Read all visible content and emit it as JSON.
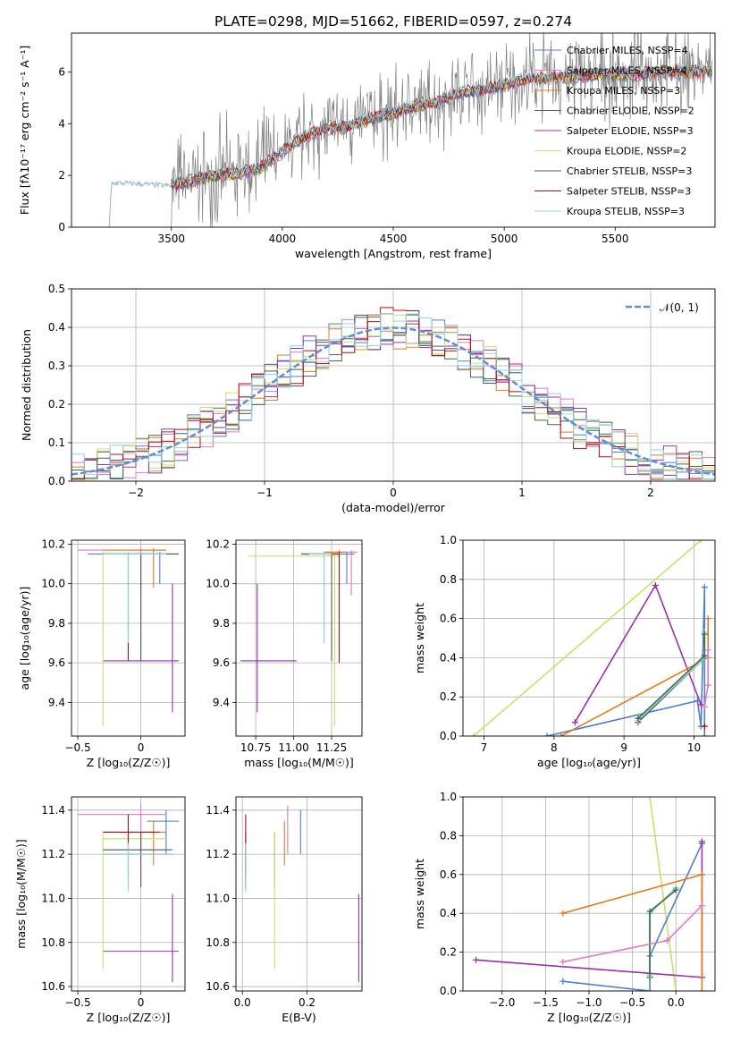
{
  "title": "PLATE=0298, MJD=51662, FIBERID=0597, z=0.274",
  "colors": {
    "chabrier_miles": "#4c7fd1",
    "salpeter_miles": "#e377c2",
    "kroupa_miles": "#e07b1a",
    "chabrier_elodie": "#3f6f3f",
    "salpeter_elodie": "#9b30ae",
    "kroupa_elodie": "#c9e06a",
    "chabrier_stelib": "#555555",
    "salpeter_stelib": "#b01010",
    "kroupa_stelib": "#8fd3e8",
    "observed": "#808080",
    "normal": "#5b8fd6"
  },
  "chart_data": [
    {
      "id": "spectrum",
      "type": "line",
      "xlabel": "wavelength [Angstrom, rest frame]",
      "ylabel": "Flux [fλ10⁻¹⁷ erg cm⁻² s⁻¹ A⁻¹]",
      "xlim": [
        3050,
        5950
      ],
      "ylim": [
        0,
        7.5
      ],
      "xticks": [
        3500,
        4000,
        4500,
        5000,
        5500
      ],
      "yticks": [
        0,
        2,
        4,
        6
      ],
      "grid": false,
      "legend_position": "top-right",
      "legend": [
        {
          "name": "Chabrier MILES, NSSP=4",
          "color": "#4c7fd1"
        },
        {
          "name": "Salpeter MILES, NSSP=4",
          "color": "#e377c2"
        },
        {
          "name": "Kroupa MILES, NSSP=3",
          "color": "#e07b1a"
        },
        {
          "name": "Chabrier ELODIE, NSSP=2",
          "color": "#3f6f3f"
        },
        {
          "name": "Salpeter ELODIE, NSSP=3",
          "color": "#9b30ae"
        },
        {
          "name": "Kroupa ELODIE, NSSP=2",
          "color": "#c9e06a"
        },
        {
          "name": "Chabrier STELIB, NSSP=3",
          "color": "#555555"
        },
        {
          "name": "Salpeter STELIB, NSSP=3",
          "color": "#b01010"
        },
        {
          "name": "Kroupa STELIB, NSSP=3",
          "color": "#8fd3e8"
        }
      ],
      "continuum": {
        "x": [
          3220,
          3300,
          3400,
          3500,
          3600,
          3700,
          3800,
          3900,
          4000,
          4100,
          4200,
          4300,
          4400,
          4500,
          4600,
          4700,
          4800,
          4900,
          5000,
          5100,
          5200,
          5300,
          5400,
          5500,
          5600,
          5700,
          5800,
          5900
        ],
        "y": [
          1.7,
          1.7,
          1.65,
          1.6,
          1.8,
          2.0,
          2.1,
          2.3,
          2.9,
          3.5,
          3.8,
          3.9,
          4.2,
          4.4,
          4.7,
          4.8,
          5.2,
          5.3,
          5.5,
          5.7,
          5.8,
          5.8,
          5.9,
          5.9,
          5.9,
          6.0,
          6.0,
          6.0
        ]
      },
      "observed_segments": [
        [
          3500,
          3980
        ],
        [
          4010,
          4380
        ],
        [
          4380,
          5940
        ]
      ]
    },
    {
      "id": "residuals",
      "type": "histogram",
      "xlabel": "(data-model)/error",
      "ylabel": "Normed distribution",
      "xlim": [
        -2.5,
        2.5
      ],
      "ylim": [
        0,
        0.5
      ],
      "xticks": [
        -2,
        -1,
        0,
        1,
        2
      ],
      "yticks": [
        0.0,
        0.1,
        0.2,
        0.3,
        0.4,
        0.5
      ],
      "grid": true,
      "legend_position": "top-right",
      "legend": [
        {
          "name": "𝒩(0, 1)",
          "color": "#5b8fd6"
        }
      ],
      "bin_width": 0.1
    },
    {
      "id": "age_vs_Z",
      "type": "errorbar",
      "xlabel": "Z [log₁₀(Z/Z☉)]",
      "ylabel": "age  [log₁₀(age/yr)]",
      "xlim": [
        -0.55,
        0.35
      ],
      "ylim": [
        9.23,
        10.22
      ],
      "xticks": [
        -0.5,
        0.0
      ],
      "yticks": [
        9.4,
        9.6,
        9.8,
        10.0,
        10.2
      ],
      "grid": true,
      "points": [
        {
          "x": 0.15,
          "y": 10.15,
          "xl": -0.42,
          "xh": 0.3,
          "yl": 10.0,
          "yh": 10.16,
          "color": "#4c7fd1"
        },
        {
          "x": 0.0,
          "y": 10.17,
          "xl": -0.5,
          "xh": 0.2,
          "yl": 9.94,
          "yh": 10.18,
          "color": "#e377c2"
        },
        {
          "x": 0.1,
          "y": 10.17,
          "xl": -0.3,
          "xh": 0.2,
          "yl": 9.98,
          "yh": 10.18,
          "color": "#e07b1a"
        },
        {
          "x": -0.1,
          "y": 10.15,
          "xl": -0.3,
          "xh": 0.2,
          "yl": 9.7,
          "yh": 10.16,
          "color": "#3f6f3f"
        },
        {
          "x": 0.25,
          "y": 9.61,
          "xl": -0.3,
          "xh": 0.3,
          "yl": 9.35,
          "yh": 10.0,
          "color": "#9b30ae"
        },
        {
          "x": -0.3,
          "y": 10.15,
          "xl": -0.3,
          "xh": 0.2,
          "yl": 9.28,
          "yh": 10.16,
          "color": "#c9e06a"
        },
        {
          "x": 0.0,
          "y": 10.15,
          "xl": -0.3,
          "xh": 0.3,
          "yl": 9.61,
          "yh": 10.15,
          "color": "#555555"
        },
        {
          "x": -0.1,
          "y": 10.15,
          "xl": -0.3,
          "xh": 0.2,
          "yl": 9.61,
          "yh": 10.15,
          "color": "#b01010"
        },
        {
          "x": -0.1,
          "y": 10.15,
          "xl": -0.3,
          "xh": 0.2,
          "yl": 9.7,
          "yh": 10.16,
          "color": "#8fd3e8"
        }
      ]
    },
    {
      "id": "age_vs_mass",
      "type": "errorbar",
      "xlabel": "mass [log₁₀(M/M☉)]",
      "ylabel": "",
      "xlim": [
        10.62,
        11.45
      ],
      "ylim": [
        9.23,
        10.22
      ],
      "xticks": [
        10.75,
        11.0,
        11.25
      ],
      "xtick_labels": [
        "10.75",
        "11.00",
        "11.25"
      ],
      "yticks": [
        9.4,
        9.6,
        9.8,
        10.0,
        10.2
      ],
      "grid": true,
      "points": [
        {
          "x": 11.35,
          "y": 10.15,
          "xl": 11.15,
          "xh": 11.4,
          "yl": 10.0,
          "yh": 10.16,
          "color": "#4c7fd1"
        },
        {
          "x": 11.38,
          "y": 10.16,
          "xl": 11.2,
          "xh": 11.42,
          "yl": 9.94,
          "yh": 10.17,
          "color": "#e377c2"
        },
        {
          "x": 11.3,
          "y": 10.16,
          "xl": 11.2,
          "xh": 11.35,
          "yl": 9.98,
          "yh": 10.17,
          "color": "#e07b1a"
        },
        {
          "x": 11.2,
          "y": 10.15,
          "xl": 11.05,
          "xh": 11.3,
          "yl": 9.7,
          "yh": 10.16,
          "color": "#3f6f3f"
        },
        {
          "x": 10.76,
          "y": 9.61,
          "xl": 10.65,
          "xh": 11.02,
          "yl": 9.35,
          "yh": 10.0,
          "color": "#9b30ae"
        },
        {
          "x": 11.27,
          "y": 10.14,
          "xl": 10.7,
          "xh": 11.3,
          "yl": 9.28,
          "yh": 10.15,
          "color": "#c9e06a"
        },
        {
          "x": 11.25,
          "y": 10.15,
          "xl": 11.05,
          "xh": 11.3,
          "yl": 9.61,
          "yh": 10.15,
          "color": "#555555"
        },
        {
          "x": 11.3,
          "y": 10.15,
          "xl": 11.1,
          "xh": 11.3,
          "yl": 9.6,
          "yh": 10.16,
          "color": "#b01010"
        },
        {
          "x": 11.2,
          "y": 10.15,
          "xl": 11.1,
          "xh": 11.25,
          "yl": 9.7,
          "yh": 10.16,
          "color": "#8fd3e8"
        }
      ]
    },
    {
      "id": "weight_vs_age",
      "type": "line",
      "xlabel": "age  [log₁₀(age/yr)]",
      "ylabel": "mass weight",
      "xlim": [
        6.7,
        10.3
      ],
      "ylim": [
        0,
        1
      ],
      "xticks": [
        7,
        8,
        9,
        10
      ],
      "yticks": [
        0.0,
        0.2,
        0.4,
        0.6,
        0.8,
        1.0
      ],
      "grid": true,
      "series": [
        {
          "color": "#c9e06a",
          "x": [
            6.85,
            10.1
          ],
          "y": [
            0.0,
            1.0
          ]
        },
        {
          "color": "#4c7fd1",
          "x": [
            7.9,
            10.05,
            10.1,
            10.15,
            10.15
          ],
          "y": [
            0.0,
            0.18,
            0.05,
            0.76,
            0.0
          ]
        },
        {
          "color": "#9b30ae",
          "x": [
            8.3,
            9.45,
            10.1
          ],
          "y": [
            0.07,
            0.77,
            0.16
          ]
        },
        {
          "color": "#e07b1a",
          "x": [
            8.1,
            10.2,
            10.2
          ],
          "y": [
            0.0,
            0.4,
            0.6
          ]
        },
        {
          "color": "#555555",
          "x": [
            9.2,
            10.15,
            10.15
          ],
          "y": [
            0.07,
            0.4,
            0.4
          ]
        },
        {
          "color": "#8fd3e8",
          "x": [
            9.2,
            10.15,
            10.15
          ],
          "y": [
            0.08,
            0.4,
            0.53
          ]
        },
        {
          "color": "#3f6f3f",
          "x": [
            9.2,
            10.15,
            10.15
          ],
          "y": [
            0.09,
            0.41,
            0.52
          ]
        },
        {
          "color": "#e377c2",
          "x": [
            10.15,
            10.2,
            10.2
          ],
          "y": [
            0.15,
            0.26,
            0.44
          ]
        },
        {
          "color": "#b01010",
          "x": [
            10.15
          ],
          "y": [
            0.05
          ]
        }
      ]
    },
    {
      "id": "mass_vs_Z",
      "type": "errorbar",
      "xlabel": "Z [log₁₀(Z/Z☉)]",
      "ylabel": "mass [log₁₀(M/M☉)]",
      "xlim": [
        -0.55,
        0.35
      ],
      "ylim": [
        10.58,
        11.46
      ],
      "xticks": [
        -0.5,
        0.0
      ],
      "yticks": [
        10.6,
        10.8,
        11.0,
        11.2,
        11.4
      ],
      "grid": true,
      "points": [
        {
          "x": 0.2,
          "y": 11.35,
          "xl": 0.05,
          "xh": 0.3,
          "yl": 11.2,
          "yh": 11.4,
          "color": "#4c7fd1"
        },
        {
          "x": 0.0,
          "y": 11.38,
          "xl": -0.5,
          "xh": 0.2,
          "yl": 11.2,
          "yh": 11.42,
          "color": "#e377c2"
        },
        {
          "x": 0.1,
          "y": 11.3,
          "xl": -0.3,
          "xh": 0.2,
          "yl": 11.15,
          "yh": 11.35,
          "color": "#e07b1a"
        },
        {
          "x": -0.1,
          "y": 11.2,
          "xl": -0.3,
          "xh": 0.25,
          "yl": 11.05,
          "yh": 11.3,
          "color": "#3f6f3f"
        },
        {
          "x": 0.25,
          "y": 10.76,
          "xl": -0.3,
          "xh": 0.3,
          "yl": 10.62,
          "yh": 11.02,
          "color": "#9b30ae"
        },
        {
          "x": -0.3,
          "y": 11.27,
          "xl": -0.3,
          "xh": 0.2,
          "yl": 10.68,
          "yh": 11.3,
          "color": "#c9e06a"
        },
        {
          "x": 0.0,
          "y": 11.22,
          "xl": -0.3,
          "xh": 0.25,
          "yl": 11.05,
          "yh": 11.3,
          "color": "#555555"
        },
        {
          "x": -0.1,
          "y": 11.3,
          "xl": -0.3,
          "xh": 0.15,
          "yl": 11.1,
          "yh": 11.38,
          "color": "#b01010"
        },
        {
          "x": -0.1,
          "y": 11.2,
          "xl": -0.3,
          "xh": 0.25,
          "yl": 11.03,
          "yh": 11.25,
          "color": "#8fd3e8"
        }
      ]
    },
    {
      "id": "mass_vs_ebv",
      "type": "errorbar",
      "xlabel": "E(B-V)",
      "ylabel": "",
      "xlim": [
        -0.02,
        0.37
      ],
      "ylim": [
        10.58,
        11.46
      ],
      "xticks": [
        0.0,
        0.2
      ],
      "yticks": [
        10.6,
        10.8,
        11.0,
        11.2,
        11.4
      ],
      "grid": true,
      "points": [
        {
          "x": 0.18,
          "y": 11.35,
          "xl": 0.18,
          "xh": 0.18,
          "yl": 11.2,
          "yh": 11.4,
          "color": "#4c7fd1"
        },
        {
          "x": 0.14,
          "y": 11.38,
          "xl": 0.14,
          "xh": 0.14,
          "yl": 11.2,
          "yh": 11.42,
          "color": "#e377c2"
        },
        {
          "x": 0.13,
          "y": 11.3,
          "xl": 0.13,
          "xh": 0.13,
          "yl": 11.15,
          "yh": 11.35,
          "color": "#e07b1a"
        },
        {
          "x": 0.1,
          "y": 11.2,
          "xl": 0.1,
          "xh": 0.1,
          "yl": 11.05,
          "yh": 11.3,
          "color": "#3f6f3f"
        },
        {
          "x": 0.36,
          "y": 10.76,
          "xl": 0.36,
          "xh": 0.36,
          "yl": 10.62,
          "yh": 11.02,
          "color": "#9b30ae"
        },
        {
          "x": 0.1,
          "y": 11.27,
          "xl": 0.1,
          "xh": 0.1,
          "yl": 10.68,
          "yh": 11.3,
          "color": "#c9e06a"
        },
        {
          "x": 0.01,
          "y": 11.22,
          "xl": 0.01,
          "xh": 0.01,
          "yl": 11.05,
          "yh": 11.3,
          "color": "#555555"
        },
        {
          "x": 0.01,
          "y": 11.3,
          "xl": 0.01,
          "xh": 0.01,
          "yl": 11.1,
          "yh": 11.38,
          "color": "#b01010"
        },
        {
          "x": 0.01,
          "y": 11.2,
          "xl": 0.01,
          "xh": 0.01,
          "yl": 11.03,
          "yh": 11.25,
          "color": "#8fd3e8"
        }
      ]
    },
    {
      "id": "weight_vs_Z",
      "type": "line",
      "xlabel": "Z [log₁₀(Z/Z☉)]",
      "ylabel": "mass weight",
      "xlim": [
        -2.45,
        0.45
      ],
      "ylim": [
        0,
        1
      ],
      "xticks": [
        -2.0,
        -1.5,
        -1.0,
        -0.5,
        0.0
      ],
      "yticks": [
        0.0,
        0.2,
        0.4,
        0.6,
        0.8,
        1.0
      ],
      "grid": true,
      "series": [
        {
          "color": "#c9e06a",
          "x": [
            -0.3,
            0.0
          ],
          "y": [
            1.0,
            0.0
          ]
        },
        {
          "color": "#4c7fd1",
          "x": [
            -1.3,
            -0.3,
            -0.3,
            0.3,
            0.3
          ],
          "y": [
            0.05,
            0.0,
            0.18,
            0.76,
            0.76
          ]
        },
        {
          "color": "#9b30ae",
          "x": [
            -2.3,
            0.3,
            0.3
          ],
          "y": [
            0.16,
            0.07,
            0.77
          ]
        },
        {
          "color": "#e07b1a",
          "x": [
            -1.3,
            0.3,
            0.3
          ],
          "y": [
            0.4,
            0.6,
            0.0
          ]
        },
        {
          "color": "#555555",
          "x": [
            -0.3,
            -0.3,
            0.0
          ],
          "y": [
            0.07,
            0.4,
            0.53
          ]
        },
        {
          "color": "#8fd3e8",
          "x": [
            -0.3,
            -0.3,
            0.0
          ],
          "y": [
            0.08,
            0.4,
            0.53
          ]
        },
        {
          "color": "#3f6f3f",
          "x": [
            -0.3,
            -0.3,
            0.0
          ],
          "y": [
            0.09,
            0.41,
            0.52
          ]
        },
        {
          "color": "#e377c2",
          "x": [
            -1.3,
            -0.1,
            0.3
          ],
          "y": [
            0.15,
            0.26,
            0.44
          ]
        }
      ]
    }
  ]
}
